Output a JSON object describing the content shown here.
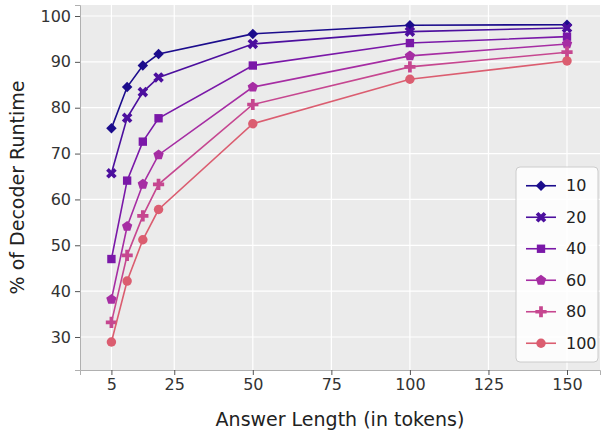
{
  "chart_data": {
    "type": "line",
    "x_label": "Answer Length (in tokens)",
    "y_label": "% of Decoder Runtime",
    "x": [
      5,
      10,
      15,
      20,
      50,
      100,
      150
    ],
    "series": [
      {
        "name": "10",
        "color": "#1b0c8c",
        "marker": "diamond",
        "values": [
          75.5,
          84.5,
          89.2,
          91.7,
          96.1,
          98.0,
          98.1
        ]
      },
      {
        "name": "20",
        "color": "#4c0f9e",
        "marker": "x",
        "values": [
          65.7,
          77.8,
          83.4,
          86.6,
          93.9,
          96.6,
          97.4
        ]
      },
      {
        "name": "40",
        "color": "#7a18a8",
        "marker": "square",
        "values": [
          47.0,
          64.1,
          72.6,
          77.7,
          89.2,
          94.1,
          95.5
        ]
      },
      {
        "name": "60",
        "color": "#a62da3",
        "marker": "pentagon",
        "values": [
          38.2,
          54.1,
          63.3,
          69.7,
          84.5,
          91.3,
          93.9
        ]
      },
      {
        "name": "80",
        "color": "#c64790",
        "marker": "plus",
        "values": [
          33.2,
          47.8,
          56.4,
          63.3,
          80.7,
          88.9,
          92.1
        ]
      },
      {
        "name": "100",
        "color": "#db5d70",
        "marker": "circle",
        "values": [
          28.9,
          42.2,
          51.2,
          57.8,
          76.5,
          86.2,
          90.2
        ]
      }
    ],
    "xlim": [
      -5,
      160.5
    ],
    "xticks": [
      5,
      25,
      50,
      75,
      100,
      125,
      150
    ],
    "ylim": [
      22.8,
      102.4
    ],
    "yticks": [
      30,
      40,
      50,
      60,
      70,
      80,
      90,
      100
    ],
    "grid": true,
    "legend": "lower right"
  }
}
